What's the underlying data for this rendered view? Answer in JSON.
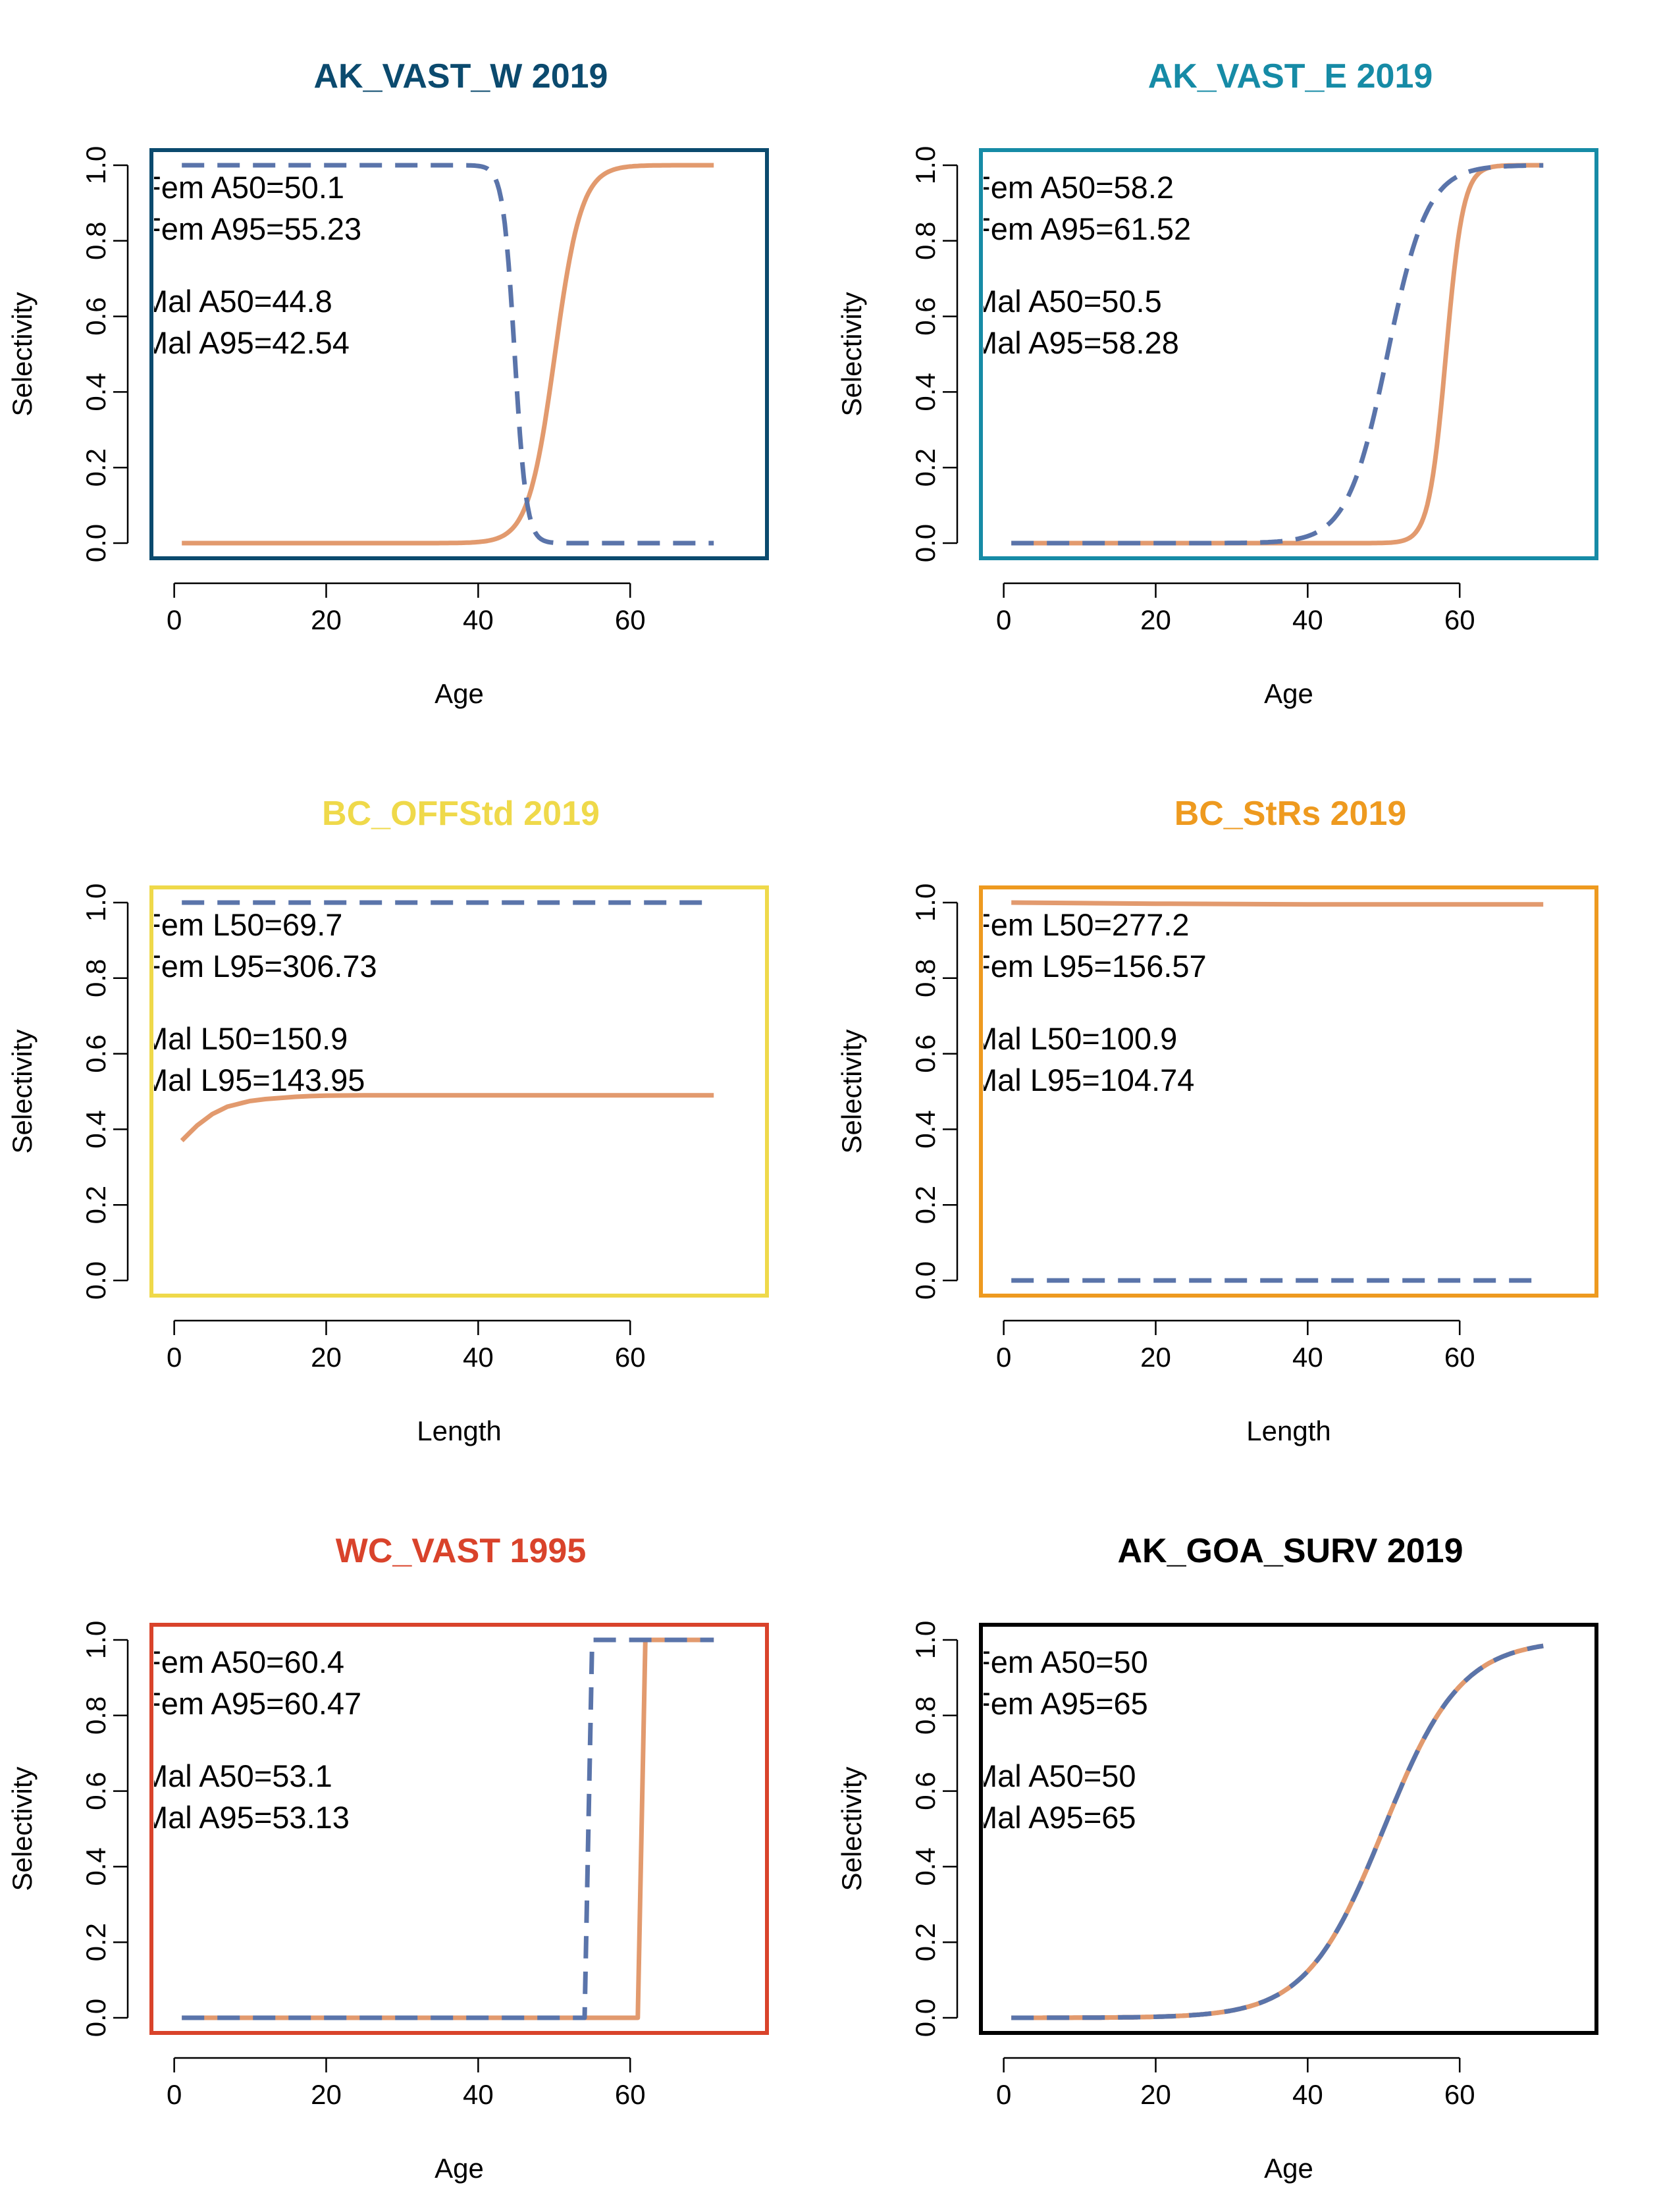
{
  "colors": {
    "female": "#e29a6e",
    "male": "#5a74aa"
  },
  "chart_data": [
    {
      "type": "line",
      "title": "AK_VAST_W 2019",
      "title_color": "#0b4a6e",
      "frame_color": "#0b4a6e",
      "xlabel": "Age",
      "ylabel": "Selectivity",
      "xlim": [
        -3,
        78
      ],
      "ylim": [
        -0.04,
        1.04
      ],
      "xticks": [
        "0",
        "20",
        "40",
        "60"
      ],
      "yticks": [
        "0.0",
        "0.2",
        "0.4",
        "0.6",
        "0.8",
        "1.0"
      ],
      "annotations": [
        "Fem A50=50.1",
        "Fem A95=55.23",
        "Mal A50=44.8",
        "Mal A95=42.54"
      ],
      "series": [
        {
          "kind": "logistic",
          "a50": 50.1,
          "a95": 55.23,
          "dash": false
        },
        {
          "kind": "logistic",
          "a50": 44.8,
          "a95": 42.54,
          "dash": true
        }
      ]
    },
    {
      "type": "line",
      "title": "AK_VAST_E 2019",
      "title_color": "#168ba6",
      "frame_color": "#168ba6",
      "xlabel": "Age",
      "ylabel": "Selectivity",
      "xlim": [
        -3,
        78
      ],
      "ylim": [
        -0.04,
        1.04
      ],
      "xticks": [
        "0",
        "20",
        "40",
        "60"
      ],
      "yticks": [
        "0.0",
        "0.2",
        "0.4",
        "0.6",
        "0.8",
        "1.0"
      ],
      "annotations": [
        "Fem A50=58.2",
        "Fem A95=61.52",
        "Mal A50=50.5",
        "Mal A95=58.28"
      ],
      "series": [
        {
          "kind": "logistic",
          "a50": 58.2,
          "a95": 61.52,
          "dash": false
        },
        {
          "kind": "logistic",
          "a50": 50.5,
          "a95": 58.28,
          "dash": true
        }
      ]
    },
    {
      "type": "line",
      "title": "BC_OFFStd 2019",
      "title_color": "#efd94a",
      "frame_color": "#efd94a",
      "xlabel": "Length",
      "ylabel": "Selectivity",
      "xlim": [
        -3,
        78
      ],
      "ylim": [
        -0.04,
        1.04
      ],
      "xticks": [
        "0",
        "20",
        "40",
        "60"
      ],
      "yticks": [
        "0.0",
        "0.2",
        "0.4",
        "0.6",
        "0.8",
        "1.0"
      ],
      "annotations": [
        "Fem L50=69.7",
        "Fem L95=306.73",
        "Mal L50=150.9",
        "Mal L95=143.95"
      ],
      "series": [
        {
          "kind": "points",
          "x": [
            1,
            2,
            3,
            4,
            5,
            6,
            7,
            8,
            9,
            10,
            12,
            14,
            16,
            18,
            20,
            25,
            30,
            40,
            50,
            60,
            71
          ],
          "y": [
            0.37,
            0.39,
            0.41,
            0.425,
            0.44,
            0.45,
            0.46,
            0.465,
            0.47,
            0.475,
            0.48,
            0.483,
            0.486,
            0.488,
            0.489,
            0.49,
            0.49,
            0.49,
            0.49,
            0.49,
            0.49
          ],
          "dash": false
        },
        {
          "kind": "points",
          "x": [
            1,
            71
          ],
          "y": [
            1.0,
            1.0
          ],
          "dash": true
        }
      ]
    },
    {
      "type": "line",
      "title": "BC_StRs 2019",
      "title_color": "#ee9a1f",
      "frame_color": "#ee9a1f",
      "xlabel": "Length",
      "ylabel": "Selectivity",
      "xlim": [
        -3,
        78
      ],
      "ylim": [
        -0.04,
        1.04
      ],
      "xticks": [
        "0",
        "20",
        "40",
        "60"
      ],
      "yticks": [
        "0.0",
        "0.2",
        "0.4",
        "0.6",
        "0.8",
        "1.0"
      ],
      "annotations": [
        "Fem L50=277.2",
        "Fem L95=156.57",
        "Mal L50=100.9",
        "Mal L95=104.74"
      ],
      "series": [
        {
          "kind": "points",
          "x": [
            1,
            20,
            40,
            71
          ],
          "y": [
            1.0,
            0.997,
            0.995,
            0.995
          ],
          "dash": false
        },
        {
          "kind": "points",
          "x": [
            1,
            71
          ],
          "y": [
            0.0,
            0.0
          ],
          "dash": true
        }
      ]
    },
    {
      "type": "line",
      "title": "WC_VAST 1995",
      "title_color": "#d9432b",
      "frame_color": "#d9432b",
      "xlabel": "Age",
      "ylabel": "Selectivity",
      "xlim": [
        -3,
        78
      ],
      "ylim": [
        -0.04,
        1.04
      ],
      "xticks": [
        "0",
        "20",
        "40",
        "60"
      ],
      "yticks": [
        "0.0",
        "0.2",
        "0.4",
        "0.6",
        "0.8",
        "1.0"
      ],
      "annotations": [
        "Fem A50=60.4",
        "Fem A95=60.47",
        "Mal A50=53.1",
        "Mal A95=53.13"
      ],
      "series": [
        {
          "kind": "points",
          "x": [
            1,
            61,
            62,
            71
          ],
          "y": [
            0.0,
            0.0,
            1.0,
            1.0
          ],
          "dash": false
        },
        {
          "kind": "points",
          "x": [
            1,
            54,
            55,
            71
          ],
          "y": [
            0.0,
            0.0,
            1.0,
            1.0
          ],
          "dash": true
        }
      ]
    },
    {
      "type": "line",
      "title": "AK_GOA_SURV 2019",
      "title_color": "#000000",
      "frame_color": "#000000",
      "xlabel": "Age",
      "ylabel": "Selectivity",
      "xlim": [
        -3,
        78
      ],
      "ylim": [
        -0.04,
        1.04
      ],
      "xticks": [
        "0",
        "20",
        "40",
        "60"
      ],
      "yticks": [
        "0.0",
        "0.2",
        "0.4",
        "0.6",
        "0.8",
        "1.0"
      ],
      "annotations": [
        "Fem A50=50",
        "Fem A95=65",
        "Mal A50=50",
        "Mal A95=65"
      ],
      "series": [
        {
          "kind": "logistic",
          "a50": 50,
          "a95": 65,
          "dash": false
        },
        {
          "kind": "logistic",
          "a50": 50,
          "a95": 65,
          "dash": true,
          "dashcolor": "#e29a6e"
        }
      ]
    }
  ]
}
